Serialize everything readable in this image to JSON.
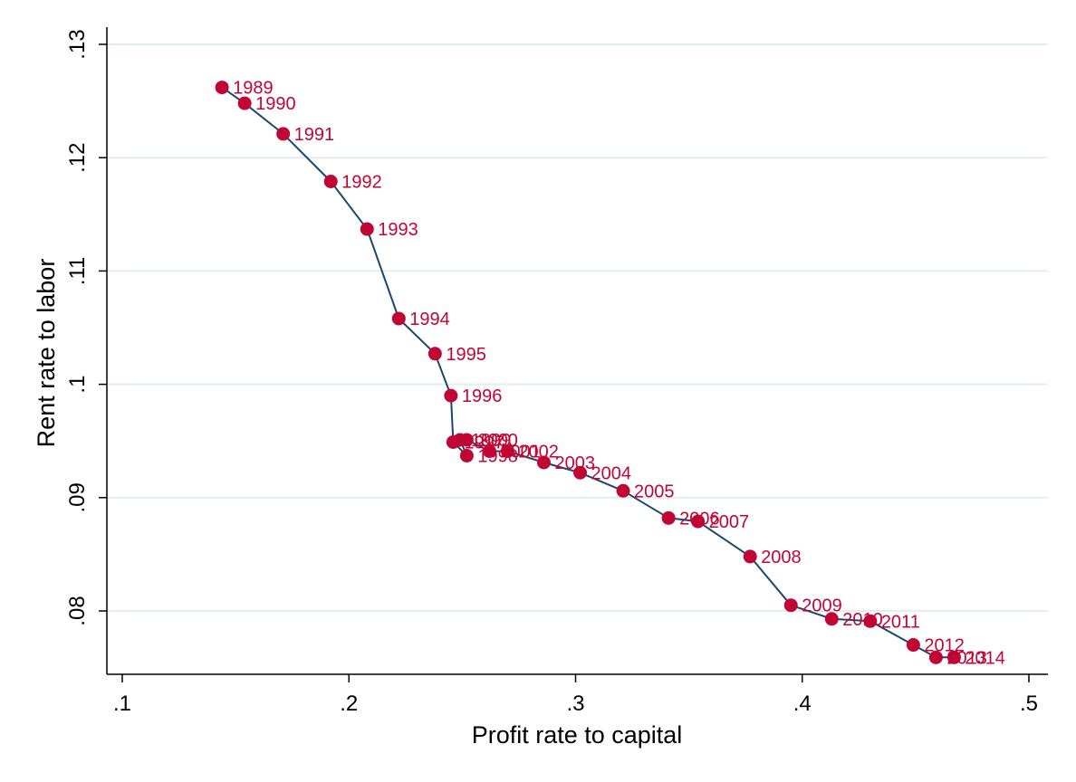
{
  "chart_data": {
    "type": "scatter",
    "xlabel": "Profit rate to capital",
    "ylabel": "Rent rate to labor",
    "xlim": [
      0.1,
      0.5
    ],
    "ylim": [
      0.075,
      0.13
    ],
    "xticks": [
      0.1,
      0.2,
      0.3,
      0.4,
      0.5
    ],
    "xtick_labels": [
      ".1",
      ".2",
      ".3",
      ".4",
      ".5"
    ],
    "yticks": [
      0.08,
      0.09,
      0.1,
      0.11,
      0.12,
      0.13
    ],
    "ytick_labels": [
      ".08",
      ".09",
      ".1",
      ".11",
      ".12",
      ".13"
    ],
    "grid": true,
    "legend": "none",
    "connected": true,
    "colors": {
      "line": "#1a476f",
      "marker": "#c10534",
      "label": "#c10534",
      "grid": "#e4eef0",
      "axis": "#000000"
    },
    "points": [
      {
        "year": "1989",
        "x": 0.144,
        "y": 0.1262
      },
      {
        "year": "1990",
        "x": 0.154,
        "y": 0.1248
      },
      {
        "year": "1991",
        "x": 0.171,
        "y": 0.1221
      },
      {
        "year": "1992",
        "x": 0.192,
        "y": 0.1179
      },
      {
        "year": "1993",
        "x": 0.208,
        "y": 0.1137
      },
      {
        "year": "1994",
        "x": 0.222,
        "y": 0.1058
      },
      {
        "year": "1995",
        "x": 0.238,
        "y": 0.1027
      },
      {
        "year": "1996",
        "x": 0.245,
        "y": 0.099
      },
      {
        "year": "1997",
        "x": 0.246,
        "y": 0.0949
      },
      {
        "year": "1998",
        "x": 0.252,
        "y": 0.0937
      },
      {
        "year": "1999",
        "x": 0.249,
        "y": 0.0951
      },
      {
        "year": "2000",
        "x": 0.252,
        "y": 0.0951
      },
      {
        "year": "2001",
        "x": 0.262,
        "y": 0.0941
      },
      {
        "year": "2002",
        "x": 0.27,
        "y": 0.0941
      },
      {
        "year": "2003",
        "x": 0.286,
        "y": 0.0931
      },
      {
        "year": "2004",
        "x": 0.302,
        "y": 0.0922
      },
      {
        "year": "2005",
        "x": 0.321,
        "y": 0.0906
      },
      {
        "year": "2006",
        "x": 0.341,
        "y": 0.0882
      },
      {
        "year": "2007",
        "x": 0.354,
        "y": 0.0879
      },
      {
        "year": "2008",
        "x": 0.377,
        "y": 0.0848
      },
      {
        "year": "2009",
        "x": 0.395,
        "y": 0.0805
      },
      {
        "year": "2010",
        "x": 0.413,
        "y": 0.0793
      },
      {
        "year": "2011",
        "x": 0.43,
        "y": 0.0791
      },
      {
        "year": "2012",
        "x": 0.449,
        "y": 0.077
      },
      {
        "year": "2013",
        "x": 0.459,
        "y": 0.0759
      },
      {
        "year": "2014",
        "x": 0.467,
        "y": 0.0759
      }
    ]
  }
}
